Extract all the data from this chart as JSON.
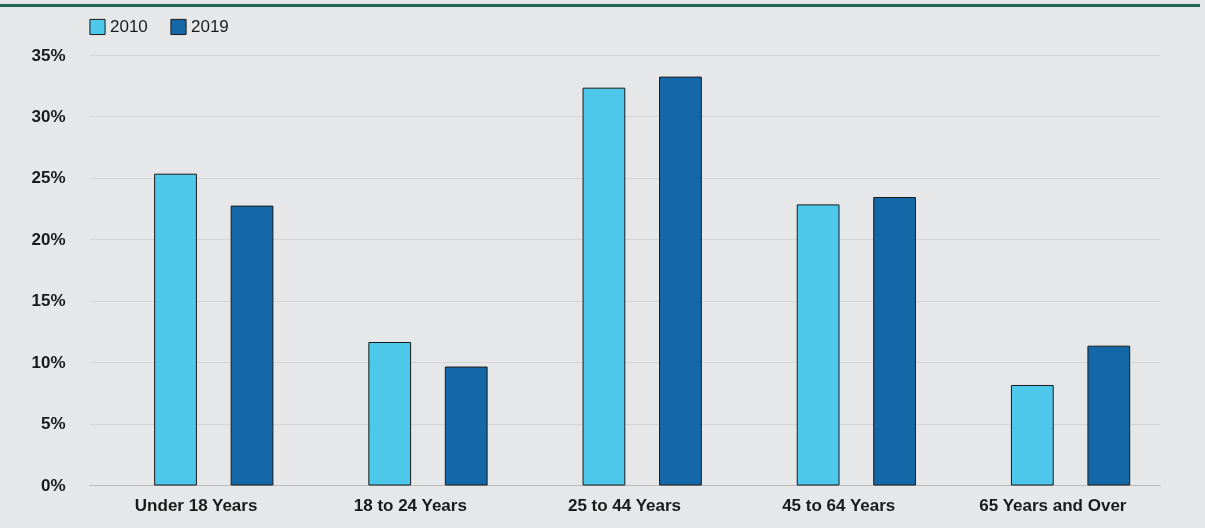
{
  "chart_data": {
    "type": "bar",
    "categories": [
      "Under 18 Years",
      "18 to 24 Years",
      "25 to 44 Years",
      "45 to 64 Years",
      "65 Years and Over"
    ],
    "series": [
      {
        "name": "2010",
        "color": "#4dc8ea",
        "values": [
          25.3,
          11.6,
          32.3,
          22.8,
          8.1
        ]
      },
      {
        "name": "2019",
        "color": "#1468a8",
        "values": [
          22.7,
          9.6,
          33.2,
          23.4,
          11.3
        ]
      }
    ],
    "ylim": [
      0,
      35
    ],
    "yticks": [
      {
        "value": 0,
        "label": "0%"
      },
      {
        "value": 5,
        "label": "5%"
      },
      {
        "value": 10,
        "label": "10%"
      },
      {
        "value": 15,
        "label": "15%"
      },
      {
        "value": 20,
        "label": "20%"
      },
      {
        "value": 25,
        "label": "25%"
      },
      {
        "value": 30,
        "label": "30%"
      },
      {
        "value": 35,
        "label": "35%"
      }
    ],
    "grid": "y",
    "legend": "top"
  }
}
